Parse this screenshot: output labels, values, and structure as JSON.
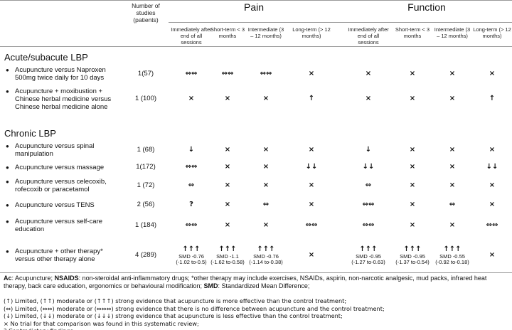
{
  "header": {
    "number_col": "Number of studies (patients)",
    "groups": [
      "Pain",
      "Function"
    ],
    "subheaders": [
      "Immediately after end of all sessions",
      "Short-term < 3 months",
      "Intermediate (3 – 12 months)",
      "Long-term (> 12 months)",
      "Immediately after end of all sessions",
      "Short-term < 3 months",
      "Intermediate (3 – 12 months)",
      "Long-term (> 12 months)"
    ]
  },
  "sections": [
    {
      "title": "Acute/subacute LBP",
      "rows": [
        {
          "label": "Acupuncture versus Naproxen 500mg twice daily for 10 days",
          "n": "1(57)",
          "cells": [
            [
              "⇔⇔"
            ],
            [
              "⇔⇔"
            ],
            [
              "⇔⇔"
            ],
            [
              "×"
            ],
            [
              "×"
            ],
            [
              "×"
            ],
            [
              "×"
            ],
            [
              "×"
            ]
          ]
        },
        {
          "label": "Acupuncture + moxibustion + Chinese herbal medicine versus Chinese herbal medicine alone",
          "n": "1 (100)",
          "cells": [
            [
              "×"
            ],
            [
              "×"
            ],
            [
              "×"
            ],
            [
              "↑"
            ],
            [
              "×"
            ],
            [
              "×"
            ],
            [
              "×"
            ],
            [
              "↑"
            ]
          ]
        }
      ]
    },
    {
      "title": "Chronic LBP",
      "rows": [
        {
          "label": "Acupuncture versus spinal manipulation",
          "n": "1 (68)",
          "cells": [
            [
              "↓"
            ],
            [
              "×"
            ],
            [
              "×"
            ],
            [
              "×"
            ],
            [
              "↓"
            ],
            [
              "×"
            ],
            [
              "×"
            ],
            [
              "×"
            ]
          ]
        },
        {
          "label": "Acupuncture versus massage",
          "n": "1(172)",
          "cells": [
            [
              "⇔⇔"
            ],
            [
              "×"
            ],
            [
              "×"
            ],
            [
              "↓↓"
            ],
            [
              "↓↓"
            ],
            [
              "×"
            ],
            [
              "×"
            ],
            [
              "↓↓"
            ]
          ]
        },
        {
          "label": "Acupuncture versus celecoxib, rofecoxib or paracetamol",
          "n": "1 (72)",
          "cells": [
            [
              "⇔"
            ],
            [
              "×"
            ],
            [
              "×"
            ],
            [
              "×"
            ],
            [
              "⇔"
            ],
            [
              "×"
            ],
            [
              "×"
            ],
            [
              "×"
            ]
          ]
        },
        {
          "label": "Acupuncture versus TENS",
          "n": "2 (56)",
          "cells": [
            [
              "?"
            ],
            [
              "×"
            ],
            [
              "⇔"
            ],
            [
              "×"
            ],
            [
              "⇔⇔"
            ],
            [
              "×"
            ],
            [
              "⇔"
            ],
            [
              "×"
            ]
          ]
        },
        {
          "label": "Acupuncture versus self-care education",
          "n": "1 (184)",
          "cells": [
            [
              "⇔⇔"
            ],
            [
              "×"
            ],
            [
              "×"
            ],
            [
              "⇔⇔"
            ],
            [
              "⇔⇔"
            ],
            [
              "×"
            ],
            [
              "×"
            ],
            [
              "⇔⇔"
            ]
          ]
        },
        {
          "label": "Acupuncture + other therapy* versus other therapy alone",
          "n": "4 (289)",
          "cells": [
            [
              "↑↑↑",
              "SMD -0.76",
              "(-1.02 to-0.5)"
            ],
            [
              "↑↑↑",
              "SMD -1.1",
              "(-1.62 to-0.58)"
            ],
            [
              "↑↑↑",
              "SMD -0.76",
              "(-1.14 to-0.38)"
            ],
            [
              "×"
            ],
            [
              "↑↑↑",
              "SMD -0.95",
              "(-1.27 to-0.63)"
            ],
            [
              "↑↑↑",
              "SMD -0.95",
              "(-1.37 to-0.54)"
            ],
            [
              "↑↑↑",
              "SMD -0.55",
              "(-0.92 to-0.18)"
            ],
            [
              "×"
            ]
          ]
        }
      ]
    }
  ],
  "notes": {
    "abbreviations": [
      {
        "term": "Ac",
        "text": ": Acupuncture; "
      },
      {
        "term": "NSAIDS",
        "text": ": non-steroidal anti-inflammatory drugs; *other therapy may include exercises, NSAIDs, aspirin, non-narcotic analgesic, mud packs, infrared heat therapy, back care education, ergonomics or behavioural modification; "
      },
      {
        "term": "SMD",
        "text": ": Standardized Mean Difference;"
      }
    ],
    "lines": [
      "(↑) Limited, (↑↑) moderate or (↑↑↑) strong evidence that acupuncture is more effective than the control treatment;",
      "(⇔) Limited, (⇔⇔) moderate or (⇔⇔⇔) strong evidence that there is no difference between acupuncture and the control treatment;",
      "(↓) Limited, (↓↓) moderate or (↓↓↓) strong evidence that acupuncture is less effective than the control treatment;",
      "× No trial for that comparison was found in this systematic review;",
      "? Contradictory findings"
    ]
  }
}
